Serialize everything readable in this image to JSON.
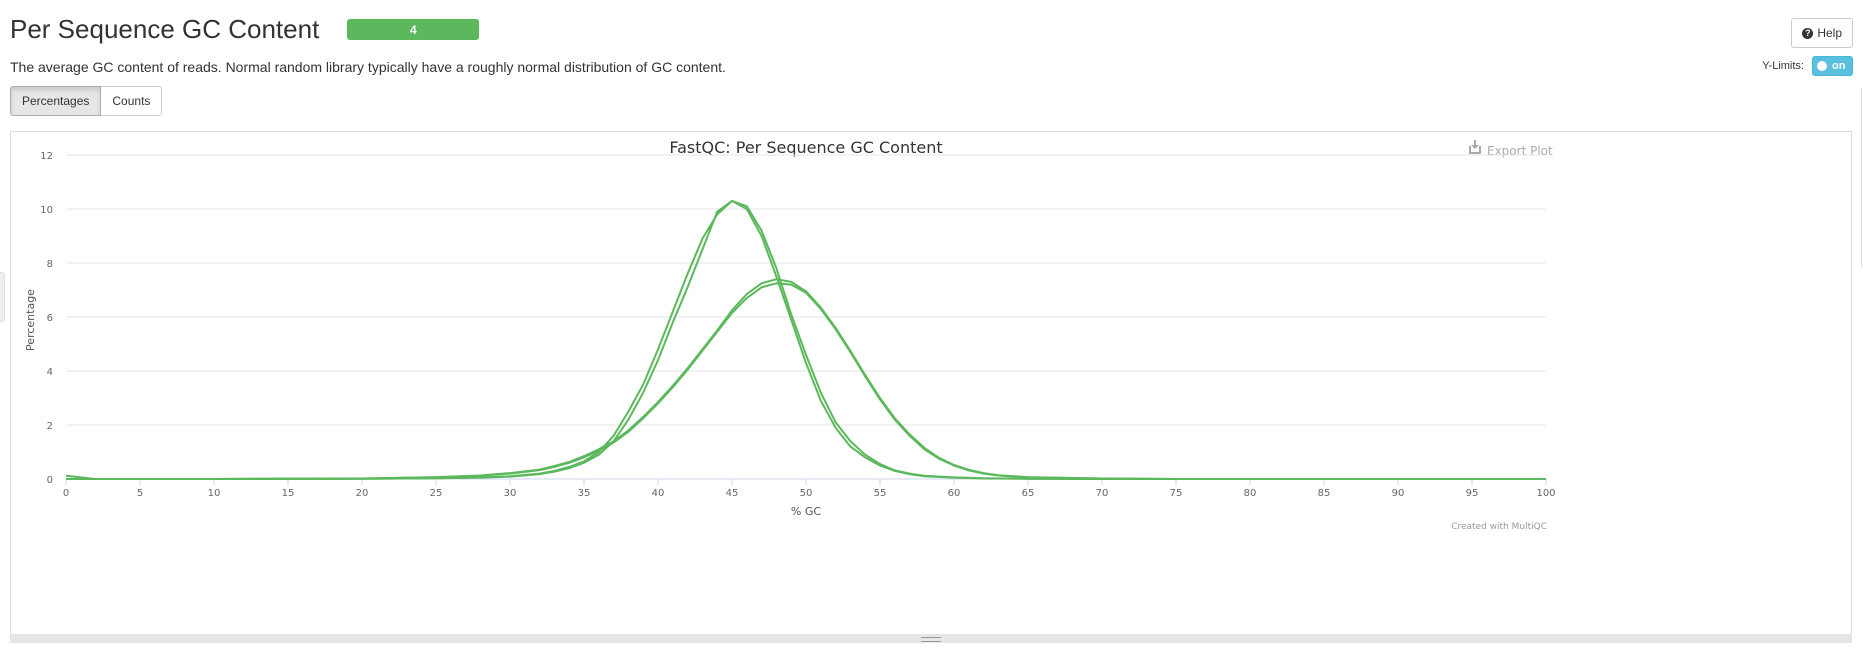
{
  "header": {
    "title": "Per Sequence GC Content",
    "badge": "4",
    "description": "The average GC content of reads. Normal random library typically have a roughly normal distribution of GC content."
  },
  "help_button": {
    "label": "Help"
  },
  "ylimits": {
    "label": "Y-Limits:",
    "toggle_label": "on"
  },
  "view_buttons": {
    "percentages": "Percentages",
    "counts": "Counts"
  },
  "export_label": "Export Plot",
  "credit": "Created with MultiQC",
  "colors": {
    "series": "#5cb85c",
    "badge": "#5cb85c",
    "toggle": "#5bc0de"
  },
  "chart_data": {
    "type": "line",
    "title": "FastQC: Per Sequence GC Content",
    "xlabel": "% GC",
    "ylabel": "Percentage",
    "xlim": [
      0,
      100
    ],
    "ylim": [
      0,
      12
    ],
    "xticks": [
      0,
      5,
      10,
      15,
      20,
      25,
      30,
      35,
      40,
      45,
      50,
      55,
      60,
      65,
      70,
      75,
      80,
      85,
      90,
      95,
      100
    ],
    "yticks": [
      0,
      2,
      4,
      6,
      8,
      10,
      12
    ],
    "grid": true,
    "legend": "none",
    "series": [
      {
        "x": [
          0,
          2,
          5,
          10,
          20,
          25,
          28,
          30,
          32,
          33,
          34,
          35,
          36,
          37,
          38,
          39,
          40,
          41,
          42,
          43,
          44,
          45,
          46,
          47,
          48,
          49,
          50,
          51,
          52,
          53,
          54,
          55,
          56,
          57,
          58,
          60,
          62,
          65,
          70,
          100
        ],
        "y": [
          0.12,
          0.0,
          0.0,
          0.0,
          0.01,
          0.03,
          0.06,
          0.1,
          0.2,
          0.3,
          0.45,
          0.65,
          1.0,
          1.6,
          2.5,
          3.5,
          4.8,
          6.2,
          7.6,
          8.9,
          9.8,
          10.3,
          10.0,
          9.0,
          7.5,
          5.9,
          4.3,
          2.9,
          1.9,
          1.2,
          0.8,
          0.5,
          0.3,
          0.18,
          0.1,
          0.05,
          0.02,
          0.01,
          0.0,
          0.0
        ]
      },
      {
        "x": [
          0,
          2,
          5,
          10,
          20,
          25,
          28,
          30,
          32,
          33,
          34,
          35,
          36,
          37,
          38,
          39,
          40,
          41,
          42,
          43,
          44,
          45,
          46,
          47,
          48,
          49,
          50,
          51,
          52,
          53,
          54,
          55,
          56,
          57,
          58,
          60,
          62,
          65,
          70,
          100
        ],
        "y": [
          0.0,
          0.0,
          0.0,
          0.0,
          0.01,
          0.03,
          0.05,
          0.09,
          0.18,
          0.27,
          0.4,
          0.6,
          0.9,
          1.4,
          2.2,
          3.2,
          4.4,
          5.8,
          7.1,
          8.5,
          9.9,
          10.3,
          10.1,
          9.2,
          7.8,
          6.1,
          4.6,
          3.2,
          2.1,
          1.4,
          0.9,
          0.55,
          0.32,
          0.2,
          0.12,
          0.06,
          0.03,
          0.01,
          0.0,
          0.0
        ]
      },
      {
        "x": [
          0,
          5,
          10,
          20,
          25,
          28,
          30,
          32,
          33,
          34,
          35,
          36,
          37,
          38,
          39,
          40,
          41,
          42,
          43,
          44,
          45,
          46,
          47,
          48,
          49,
          50,
          51,
          52,
          53,
          54,
          55,
          56,
          57,
          58,
          59,
          60,
          61,
          62,
          63,
          65,
          70,
          75,
          100
        ],
        "y": [
          0.0,
          0.0,
          0.0,
          0.02,
          0.06,
          0.12,
          0.2,
          0.33,
          0.45,
          0.6,
          0.8,
          1.05,
          1.35,
          1.75,
          2.25,
          2.8,
          3.4,
          4.05,
          4.75,
          5.45,
          6.15,
          6.7,
          7.1,
          7.25,
          7.2,
          6.9,
          6.3,
          5.55,
          4.7,
          3.8,
          2.95,
          2.2,
          1.6,
          1.1,
          0.75,
          0.5,
          0.32,
          0.2,
          0.13,
          0.06,
          0.02,
          0.0,
          0.0
        ]
      },
      {
        "x": [
          0,
          5,
          10,
          20,
          25,
          28,
          30,
          32,
          33,
          34,
          35,
          36,
          37,
          38,
          39,
          40,
          41,
          42,
          43,
          44,
          45,
          46,
          47,
          48,
          49,
          50,
          51,
          52,
          53,
          54,
          55,
          56,
          57,
          58,
          59,
          60,
          61,
          62,
          63,
          65,
          70,
          75,
          100
        ],
        "y": [
          0.0,
          0.0,
          0.0,
          0.02,
          0.07,
          0.13,
          0.22,
          0.35,
          0.48,
          0.63,
          0.85,
          1.1,
          1.4,
          1.8,
          2.3,
          2.85,
          3.45,
          4.1,
          4.8,
          5.5,
          6.25,
          6.85,
          7.25,
          7.4,
          7.3,
          6.95,
          6.35,
          5.6,
          4.75,
          3.85,
          3.0,
          2.25,
          1.65,
          1.15,
          0.78,
          0.52,
          0.34,
          0.22,
          0.14,
          0.07,
          0.02,
          0.0,
          0.0
        ]
      }
    ]
  }
}
